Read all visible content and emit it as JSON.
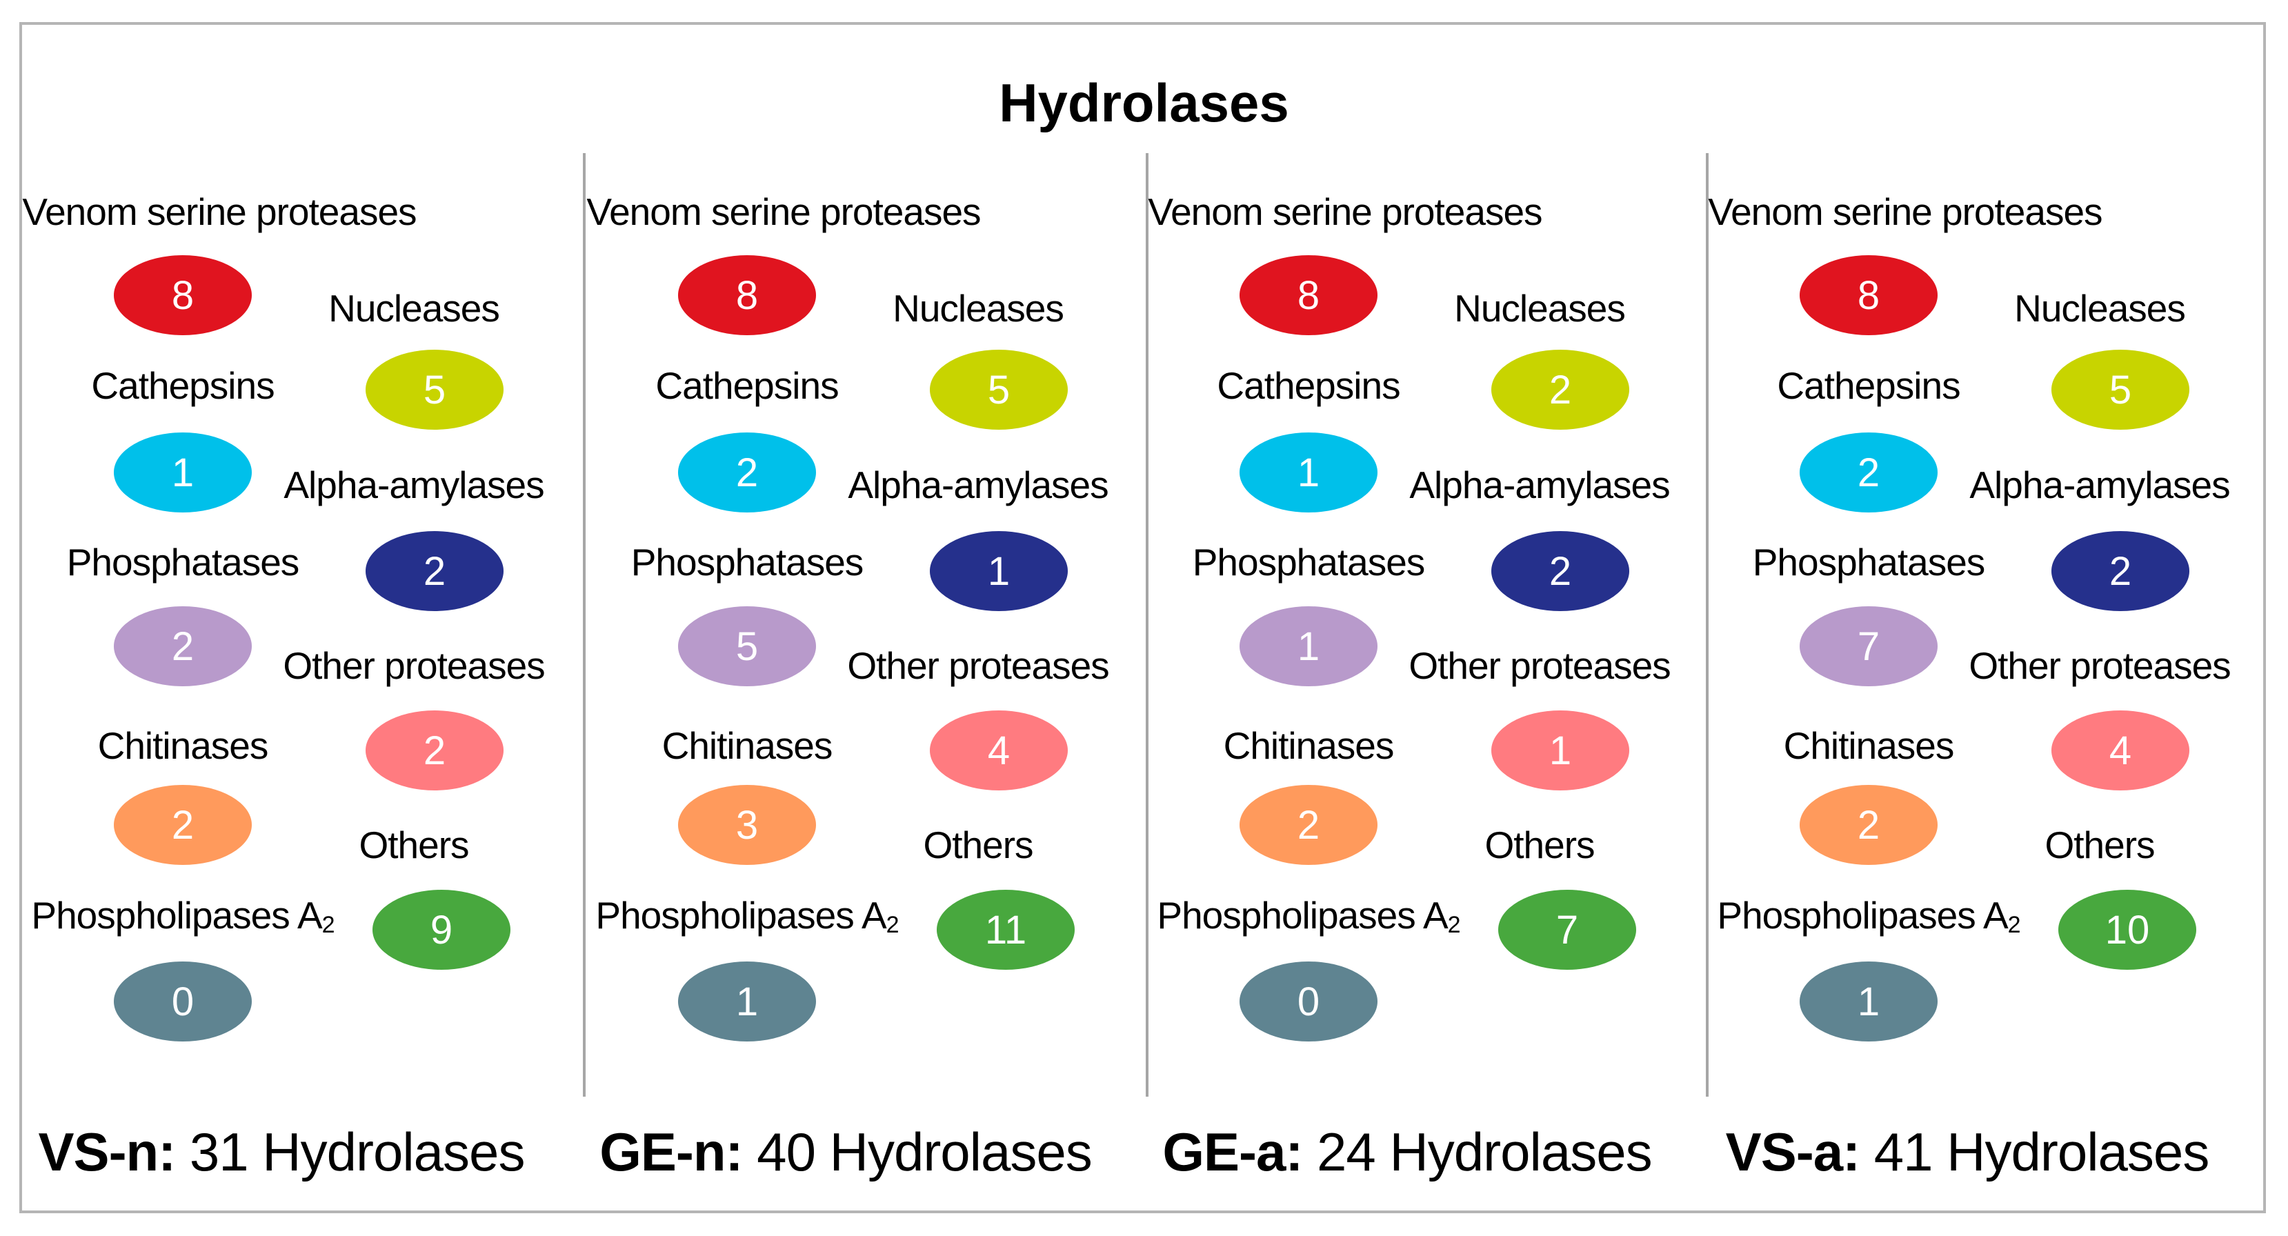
{
  "title": "Hydrolases",
  "colors": {
    "venom_serine_proteases": "#e0141f",
    "nucleases": "#c8d400",
    "cathepsins": "#00c0ea",
    "alpha_amylases": "#25308c",
    "phosphatases": "#b89acb",
    "other_proteases": "#ff7b80",
    "chitinases": "#ff9a5c",
    "others": "#48a83e",
    "phospholipases": "#5f8491"
  },
  "labels": {
    "venom_serine_proteases": "Venom serine proteases",
    "nucleases": "Nucleases",
    "cathepsins": "Cathepsins",
    "alpha_amylases": "Alpha-amylases",
    "phosphatases": "Phosphatases",
    "other_proteases": "Other proteases",
    "chitinases": "Chitinases",
    "others": "Others",
    "phospholipases_prefix": "Phospholipases A",
    "phospholipases_sub": "2"
  },
  "panels": [
    {
      "code": "VS-n:",
      "summary": "31 Hydrolases",
      "counts": {
        "venom_serine_proteases": "8",
        "nucleases": "5",
        "cathepsins": "1",
        "alpha_amylases": "2",
        "phosphatases": "2",
        "other_proteases": "2",
        "chitinases": "2",
        "others": "9",
        "phospholipases": "0"
      }
    },
    {
      "code": "GE-n:",
      "summary": "40 Hydrolases",
      "counts": {
        "venom_serine_proteases": "8",
        "nucleases": "5",
        "cathepsins": "2",
        "alpha_amylases": "1",
        "phosphatases": "5",
        "other_proteases": "4",
        "chitinases": "3",
        "others": "11",
        "phospholipases": "1"
      }
    },
    {
      "code": "GE-a:",
      "summary": "24 Hydrolases",
      "counts": {
        "venom_serine_proteases": "8",
        "nucleases": "2",
        "cathepsins": "1",
        "alpha_amylases": "2",
        "phosphatases": "1",
        "other_proteases": "1",
        "chitinases": "2",
        "others": "7",
        "phospholipases": "0"
      }
    },
    {
      "code": "VS-a:",
      "summary": "41 Hydrolases",
      "counts": {
        "venom_serine_proteases": "8",
        "nucleases": "5",
        "cathepsins": "2",
        "alpha_amylases": "2",
        "phosphatases": "7",
        "other_proteases": "4",
        "chitinases": "2",
        "others": "10",
        "phospholipases": "1"
      }
    }
  ]
}
